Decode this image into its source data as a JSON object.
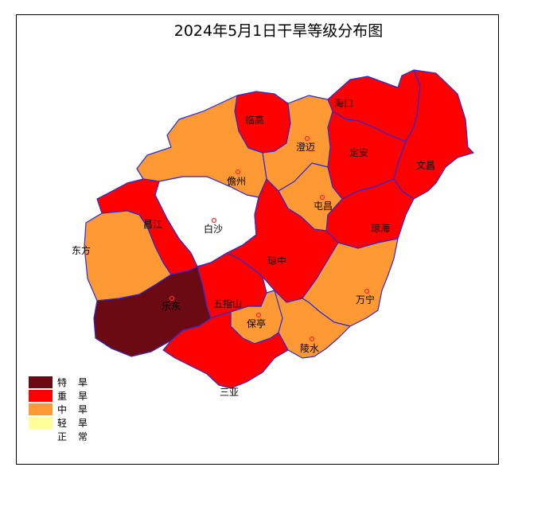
{
  "title": "2024年5月1日干旱等级分布图",
  "colors": {
    "extreme": "#6b0a12",
    "severe": "#ff0000",
    "moderate": "#ff9933",
    "light": "#ffff99",
    "normal": "#ffffff",
    "border": "#2b2bd9"
  },
  "regions": [
    {
      "id": "haikou",
      "label": "海口",
      "level": "severe"
    },
    {
      "id": "wenchang",
      "label": "文昌",
      "level": "severe"
    },
    {
      "id": "dingan",
      "label": "定安",
      "level": "severe"
    },
    {
      "id": "qionghai",
      "label": "琼海",
      "level": "severe"
    },
    {
      "id": "lingao",
      "label": "临高",
      "level": "severe"
    },
    {
      "id": "chengmai",
      "label": "澄迈",
      "level": "moderate"
    },
    {
      "id": "tunchang",
      "label": "屯昌",
      "level": "moderate"
    },
    {
      "id": "danzhou",
      "label": "儋州",
      "level": "moderate"
    },
    {
      "id": "baisha",
      "label": "白沙",
      "level": "normal"
    },
    {
      "id": "changjiang",
      "label": "昌江",
      "level": "severe"
    },
    {
      "id": "dongfang",
      "label": "东方",
      "level": "moderate"
    },
    {
      "id": "qiongzhong",
      "label": "琼中",
      "level": "severe"
    },
    {
      "id": "wanning",
      "label": "万宁",
      "level": "moderate"
    },
    {
      "id": "ledong",
      "label": "乐东",
      "level": "extreme"
    },
    {
      "id": "wuzhishan",
      "label": "五指山",
      "level": "severe"
    },
    {
      "id": "baoting",
      "label": "保亭",
      "level": "moderate"
    },
    {
      "id": "lingshui",
      "label": "陵水",
      "level": "moderate"
    },
    {
      "id": "sanya",
      "label": "三亚",
      "level": "severe"
    }
  ],
  "legend": [
    {
      "label": "特旱",
      "level": "extreme"
    },
    {
      "label": "重旱",
      "level": "severe"
    },
    {
      "label": "中旱",
      "level": "moderate"
    },
    {
      "label": "轻旱",
      "level": "light"
    },
    {
      "label": "正常",
      "level": "normal"
    }
  ]
}
